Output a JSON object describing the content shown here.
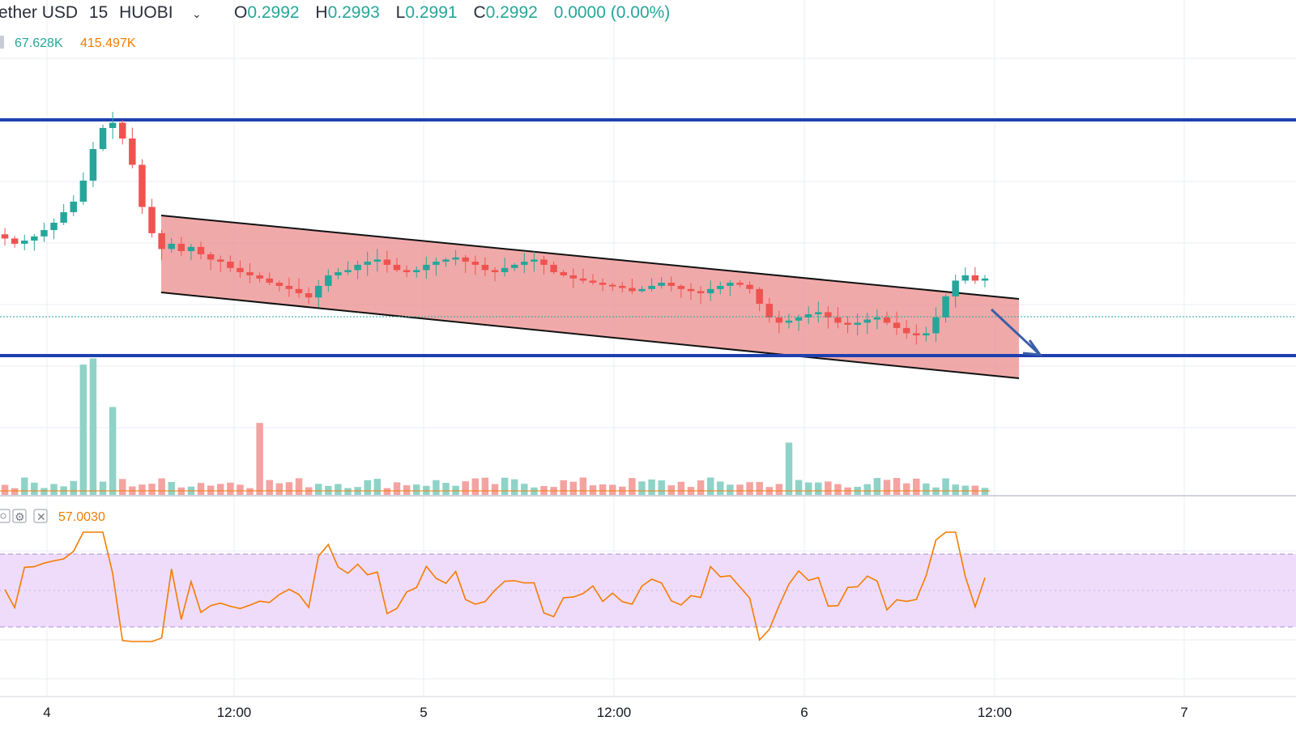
{
  "header": {
    "symbol": "ether USD",
    "interval": "15",
    "exchange": "HUOBI",
    "open_label": "O",
    "open_value": "0.2992",
    "high_label": "H",
    "high_value": "0.2993",
    "low_label": "L",
    "low_value": "0.2991",
    "close_label": "C",
    "close_value": "0.2992",
    "change": "0.0000 (0.00%)"
  },
  "volume_legend": {
    "value1": "67.628K",
    "value2": "415.497K"
  },
  "rsi_legend": {
    "value": "57.0030"
  },
  "x_axis_labels": [
    "4",
    "12:00",
    "5",
    "12:00",
    "6",
    "12:00",
    "7"
  ],
  "colors": {
    "up": "#26a69a",
    "down": "#ef5350",
    "volume_up": "#8fd3c8",
    "volume_down": "#f4a3a1",
    "level_line": "#1e40af",
    "channel_fill": "#eb8c8c",
    "channel_edge": "#111111",
    "arrow": "#3a5ea8",
    "rsi_line": "#f57c00",
    "rsi_band": "#efdcfb",
    "rsi_band_edge": "#b090d0",
    "volume_ma": "#f57c00",
    "grid": "#e8eef5",
    "text": "#2a2e39"
  },
  "icons": [
    "chevron-down-icon",
    "eye-icon",
    "gear-icon",
    "close-icon"
  ],
  "chart_data": {
    "type": "candlestick",
    "series": [
      {
        "name": "price",
        "x_start_label": "4",
        "interval_minutes": 15,
        "points": [
          0.298,
          0.2975,
          0.2978,
          0.2982,
          0.2988,
          0.2995,
          0.3005,
          0.3015,
          0.3035,
          0.3065,
          0.3085,
          0.309,
          0.3075,
          0.305,
          0.301,
          0.2985,
          0.297,
          0.2975,
          0.2968,
          0.2972,
          0.2965,
          0.296,
          0.2958,
          0.2952,
          0.2948,
          0.2945,
          0.2942,
          0.2938,
          0.2935,
          0.2932,
          0.2928,
          0.2924,
          0.2935,
          0.2945,
          0.2948,
          0.295,
          0.2955,
          0.2958,
          0.296,
          0.2955,
          0.295,
          0.2948,
          0.295,
          0.2955,
          0.2958,
          0.296,
          0.2962,
          0.2958,
          0.2955,
          0.295,
          0.2948,
          0.2952,
          0.2955,
          0.2958,
          0.296,
          0.2955,
          0.2948,
          0.2945,
          0.2942,
          0.294,
          0.2938,
          0.2936,
          0.2935,
          0.2933,
          0.293,
          0.2932,
          0.2935,
          0.2938,
          0.2935,
          0.2932,
          0.293,
          0.2928,
          0.2932,
          0.2935,
          0.2938,
          0.2936,
          0.2932,
          0.2918,
          0.2905,
          0.29,
          0.2902,
          0.2905,
          0.2908,
          0.291,
          0.2905,
          0.29,
          0.2898,
          0.29,
          0.2903,
          0.2905,
          0.29,
          0.2895,
          0.289,
          0.2888,
          0.289,
          0.2905,
          0.2925,
          0.294,
          0.2945,
          0.294,
          0.2942
        ],
        "ohlc_note": "closing prices of the 15-minute candles, read off the chart; the price axis is not shown"
      }
    ],
    "levels": [
      {
        "name": "resistance",
        "orientation": "horizontal"
      },
      {
        "name": "support",
        "orientation": "horizontal"
      }
    ],
    "channel": {
      "type": "descending",
      "fill": "#eb8c8c"
    },
    "volume": {
      "type": "bar",
      "legend": [
        "67.628K",
        "415.497K"
      ]
    },
    "rsi": {
      "type": "line",
      "last": 57.003,
      "band": [
        30,
        70
      ]
    },
    "x_ticks": [
      "4",
      "12:00",
      "5",
      "12:00",
      "6",
      "12:00",
      "7"
    ],
    "grid": true
  }
}
